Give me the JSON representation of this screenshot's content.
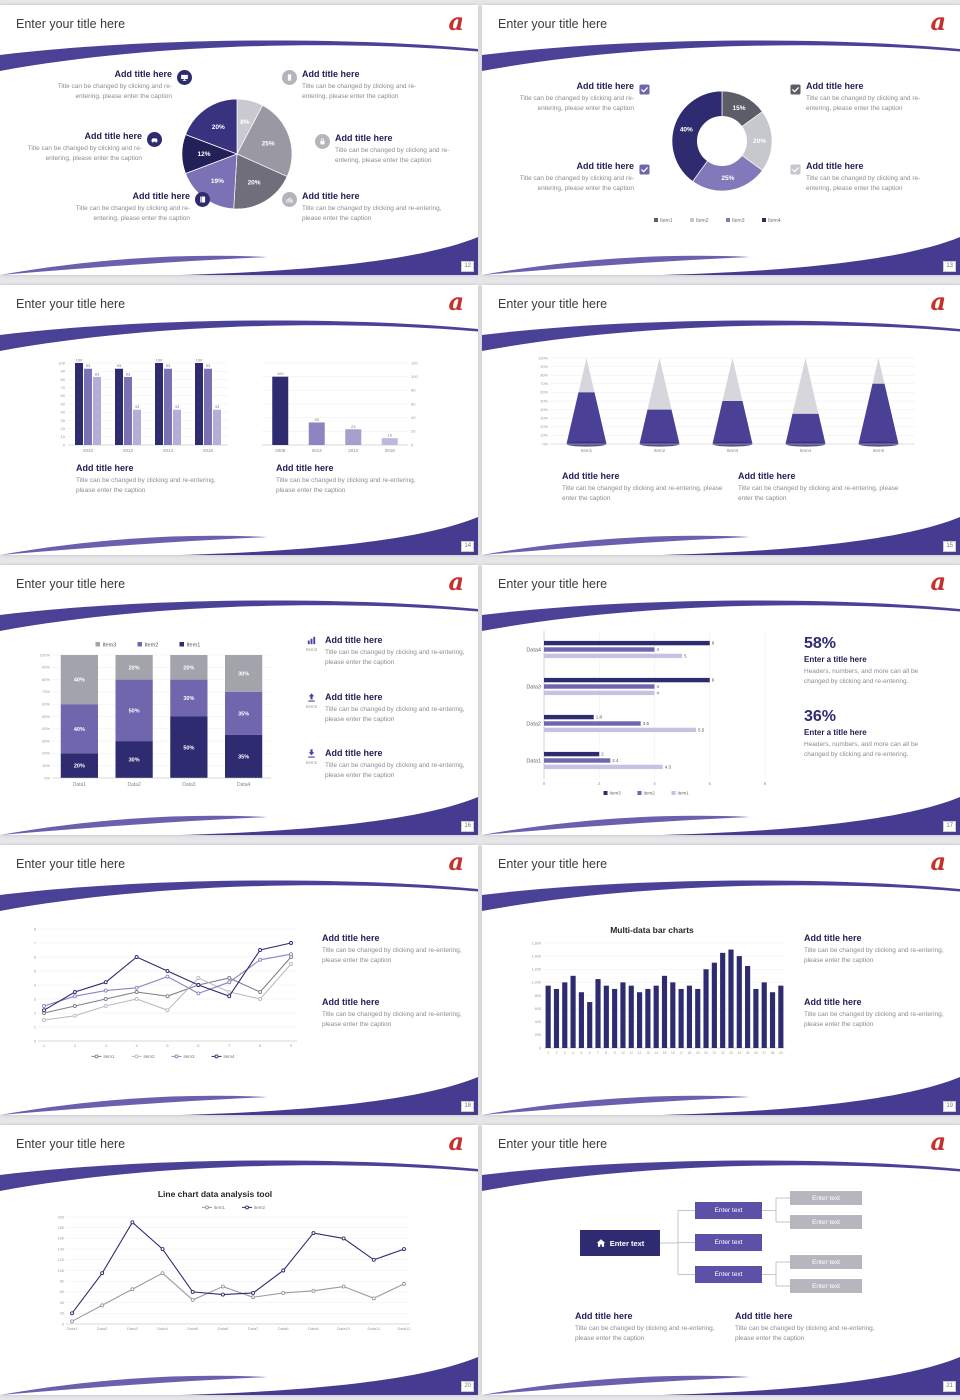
{
  "common": {
    "slide_title": "Enter your title here",
    "logo_text": "a",
    "add_title": "Add title here",
    "caption": "Title can be changed by clicking and re-entering, please enter the caption"
  },
  "palette": {
    "accent_red": "#c5322d",
    "dark_indigo": "#2f2b70",
    "purple": "#6f66ad",
    "light_purple": "#b5aed8",
    "swoosh_purple": "#4b4298",
    "gray": "#b4b4bc"
  },
  "slides": [
    {
      "page": "12",
      "callouts": [
        {
          "icon": "monitor"
        },
        {
          "icon": "smartphone"
        },
        {
          "icon": "car"
        },
        {
          "icon": "lock"
        },
        {
          "icon": "notebook"
        },
        {
          "icon": "bicycle"
        }
      ],
      "chart_data": {
        "type": "pie",
        "values": [
          8,
          25,
          20,
          19,
          12,
          20
        ],
        "labels": [
          "8%",
          "25%",
          "20%",
          "19%",
          "12%",
          "20%"
        ],
        "colors": [
          "#c9c9d1",
          "#9a99a3",
          "#6f6e7a",
          "#7b71b5",
          "#232058",
          "#38327f"
        ]
      }
    },
    {
      "page": "13",
      "checkboxes": [
        {
          "color": "#6f66ad"
        },
        {
          "color": "#6f66ad"
        },
        {
          "color": "#5d5d68"
        },
        {
          "color": "#c7c7ce"
        }
      ],
      "chart_data": {
        "type": "donut",
        "r": 50,
        "values": [
          15,
          20,
          25,
          40
        ],
        "labels": [
          "15%",
          "20%",
          "25%",
          "40%"
        ],
        "colors": [
          "#5d5d68",
          "#c7c7ce",
          "#8179b9",
          "#2f2b70"
        ],
        "legend": [
          {
            "label": "Item1",
            "color": "#5d5d68"
          },
          {
            "label": "Item2",
            "color": "#c7c7ce"
          },
          {
            "label": "Item3",
            "color": "#8179b9"
          },
          {
            "label": "Item4",
            "color": "#2f2b70"
          }
        ]
      }
    },
    {
      "page": "14",
      "chart_data": [
        {
          "type": "bar",
          "categories": [
            "2010",
            "2012",
            "2014",
            "2016"
          ],
          "series": [
            {
              "name": "Series1",
              "color": "#2f2b70",
              "values": [
                100,
                93,
                100,
                100
              ]
            },
            {
              "name": "Series2",
              "color": "#7b71b5",
              "values": [
                93,
                83,
                93,
                93
              ]
            },
            {
              "name": "Series3",
              "color": "#b5aed8",
              "values": [
                83,
                43,
                43,
                43
              ]
            }
          ],
          "ylim": [
            0,
            100
          ],
          "ytick_step": 10,
          "axis_side": "left",
          "show_values": true
        },
        {
          "type": "bar",
          "categories": [
            "2008",
            "2014",
            "2012",
            "2018"
          ],
          "series": [
            {
              "name": "Series1",
              "color": "#2f2b70",
              "values": [
                100,
                33,
                23,
                10
              ]
            }
          ],
          "bar_colors": [
            "#2f2b70",
            "#8d85c1",
            "#a59ecf",
            "#beb8dd"
          ],
          "ylim": [
            0,
            120
          ],
          "ytick_step": 20,
          "axis_side": "right",
          "show_values": true
        }
      ]
    },
    {
      "page": "15",
      "chart_data": {
        "type": "cone",
        "categories": [
          "Item1",
          "Item2",
          "Item3",
          "Item4",
          "Item5"
        ],
        "values": [
          60,
          40,
          50,
          35,
          70
        ],
        "ylim": [
          0,
          100
        ],
        "ytick_step": 10,
        "fill_color": "#4a4197",
        "rest_color": "#d6d6dc"
      }
    },
    {
      "page": "16",
      "icon_items": [
        {
          "icon": "bar-chart",
          "label": "Item3"
        },
        {
          "icon": "upload",
          "label": "Item2"
        },
        {
          "icon": "download",
          "label": "Item1"
        }
      ],
      "chart_data": {
        "type": "stacked",
        "categories": [
          "Data1",
          "Data2",
          "Data3",
          "Data4"
        ],
        "series": [
          {
            "name": "Item1",
            "color": "#2f2b70",
            "values": [
              20,
              30,
              50,
              35
            ]
          },
          {
            "name": "Item2",
            "color": "#6f66ad",
            "values": [
              40,
              50,
              30,
              35
            ]
          },
          {
            "name": "Item3",
            "color": "#a3a3ab",
            "values": [
              40,
              20,
              20,
              30
            ]
          }
        ],
        "legend": [
          "Item3",
          "Item2",
          "Item1"
        ],
        "ylim": [
          0,
          100
        ],
        "ytick_step": 10
      }
    },
    {
      "page": "17",
      "stats": [
        {
          "value": "58%",
          "title": "Enter a title here",
          "desc": "Headers, numbers, and more can all be changed by clicking and re-entering."
        },
        {
          "value": "36%",
          "title": "Enter a title here",
          "desc": "Headers, numbers, and more can all be changed by clicking and re-entering."
        }
      ],
      "chart_data": {
        "type": "hbar",
        "categories": [
          "Data4",
          "Data3",
          "Data2",
          "Data1"
        ],
        "series": [
          {
            "name": "Item3",
            "color": "#2f2b70",
            "values": [
              6,
              6,
              1.8,
              2
            ]
          },
          {
            "name": "Item2",
            "color": "#6f66ad",
            "values": [
              4,
              4,
              3.5,
              2.4
            ]
          },
          {
            "name": "Item1",
            "color": "#c6c2e2",
            "values": [
              5,
              4,
              5.5,
              4.3
            ]
          }
        ],
        "legend": [
          "Item3",
          "Item2",
          "Item1"
        ],
        "xlim": [
          0,
          8
        ],
        "xtick_step": 2
      }
    },
    {
      "page": "18",
      "chart_data": {
        "type": "line",
        "x": [
          "1",
          "2",
          "3",
          "4",
          "5",
          "6",
          "7",
          "8",
          "9"
        ],
        "ylim": [
          0,
          8
        ],
        "ytick_step": 1,
        "series": [
          {
            "name": "item1",
            "color": "#80808a",
            "values": [
              2,
              2.5,
              3,
              3.5,
              3.2,
              4,
              4.5,
              3.5,
              6
            ]
          },
          {
            "name": "item2",
            "color": "#bcbcc4",
            "values": [
              1.5,
              1.8,
              2.5,
              3,
              2.2,
              4.5,
              3.5,
              3,
              5.5
            ]
          },
          {
            "name": "item3",
            "color": "#8d85c1",
            "values": [
              2.5,
              3.2,
              3.6,
              3.8,
              4.6,
              3.4,
              4.2,
              5.8,
              6.2
            ]
          },
          {
            "name": "item4",
            "color": "#2f2b70",
            "values": [
              2.2,
              3.5,
              4.2,
              6,
              5,
              4,
              3.2,
              6.5,
              7
            ]
          }
        ]
      }
    },
    {
      "page": "19",
      "chart_title": "Multi-data bar charts",
      "chart_data": {
        "type": "bar-dense",
        "categories": [
          "1",
          "2",
          "3",
          "4",
          "5",
          "6",
          "7",
          "8",
          "9",
          "10",
          "11",
          "12",
          "13",
          "14",
          "15",
          "16",
          "17",
          "18",
          "19",
          "20",
          "21",
          "22",
          "23",
          "24",
          "25",
          "26",
          "27",
          "28",
          "29"
        ],
        "values": [
          950,
          900,
          1000,
          1100,
          850,
          700,
          1050,
          950,
          900,
          1000,
          950,
          850,
          900,
          950,
          1100,
          1000,
          900,
          950,
          900,
          1200,
          1300,
          1450,
          1500,
          1400,
          1250,
          900,
          1000,
          850,
          950
        ],
        "ylim": [
          0,
          1600
        ],
        "ytick_step": 200,
        "color": "#2f2b70"
      }
    },
    {
      "page": "20",
      "chart_title": "Line chart data analysis tool",
      "chart_data": {
        "type": "line",
        "legend_top": true,
        "x": [
          "Data1",
          "Data2",
          "Data3",
          "Data4",
          "Data5",
          "Data6",
          "Data7",
          "Data8",
          "Data9",
          "Data10",
          "Data11",
          "Data12"
        ],
        "ylim": [
          0,
          200
        ],
        "ytick_step": 20,
        "series": [
          {
            "name": "item1",
            "color": "#9a9aa2",
            "values": [
              5,
              35,
              65,
              95,
              45,
              70,
              50,
              58,
              62,
              70,
              48,
              75
            ]
          },
          {
            "name": "item2",
            "color": "#2f2b70",
            "values": [
              20,
              95,
              190,
              140,
              60,
              55,
              58,
              100,
              170,
              160,
              120,
              140
            ]
          }
        ]
      }
    },
    {
      "page": "21",
      "flow": {
        "main": "Enter text",
        "mid": [
          "Enter text",
          "Enter text",
          "Enter text"
        ],
        "right": [
          "Enter text",
          "Enter text",
          "Enter text",
          "Enter text"
        ]
      }
    }
  ]
}
